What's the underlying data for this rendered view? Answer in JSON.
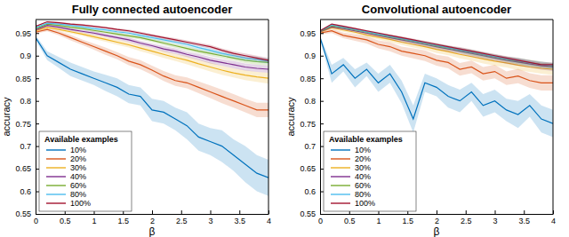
{
  "chart_data": [
    {
      "type": "line",
      "title": "Fully connected autoencoder",
      "x_label": "β",
      "y_label": "accuracy",
      "legend": "lower left",
      "legend_title": "Available examples",
      "grid": false,
      "xlim": [
        0,
        4
      ],
      "ylim": [
        0.55,
        0.98
      ],
      "xticks": [
        0,
        0.5,
        1,
        1.5,
        2,
        2.5,
        3,
        3.5,
        4
      ],
      "yticks": [
        0.55,
        0.6,
        0.65,
        0.7,
        0.75,
        0.8,
        0.85,
        0.9,
        0.95
      ],
      "x": [
        0,
        0.2,
        0.4,
        0.6,
        0.8,
        1,
        1.2,
        1.4,
        1.6,
        1.8,
        2,
        2.2,
        2.4,
        2.6,
        2.8,
        3,
        3.2,
        3.4,
        3.6,
        3.8,
        4
      ],
      "series": [
        {
          "name": "10%",
          "color": "#0072bd",
          "values": [
            0.94,
            0.9,
            0.885,
            0.87,
            0.86,
            0.85,
            0.84,
            0.83,
            0.815,
            0.81,
            0.78,
            0.775,
            0.76,
            0.745,
            0.72,
            0.71,
            0.7,
            0.68,
            0.66,
            0.64,
            0.63
          ],
          "errors": [
            0.005,
            0.01,
            0.012,
            0.015,
            0.015,
            0.015,
            0.018,
            0.02,
            0.02,
            0.02,
            0.025,
            0.025,
            0.025,
            0.03,
            0.03,
            0.03,
            0.035,
            0.035,
            0.04,
            0.04,
            0.04
          ]
        },
        {
          "name": "20%",
          "color": "#d95319",
          "values": [
            0.952,
            0.958,
            0.95,
            0.94,
            0.93,
            0.92,
            0.91,
            0.9,
            0.888,
            0.88,
            0.868,
            0.855,
            0.845,
            0.84,
            0.83,
            0.82,
            0.81,
            0.8,
            0.79,
            0.78,
            0.78
          ],
          "errors": [
            0.003,
            0.004,
            0.005,
            0.006,
            0.006,
            0.007,
            0.008,
            0.008,
            0.009,
            0.01,
            0.01,
            0.011,
            0.012,
            0.012,
            0.013,
            0.014,
            0.015,
            0.015,
            0.015,
            0.016,
            0.016
          ]
        },
        {
          "name": "30%",
          "color": "#edb120",
          "values": [
            0.955,
            0.963,
            0.958,
            0.953,
            0.948,
            0.942,
            0.936,
            0.93,
            0.924,
            0.917,
            0.91,
            0.903,
            0.896,
            0.89,
            0.882,
            0.875,
            0.868,
            0.862,
            0.857,
            0.853,
            0.85
          ],
          "errors": [
            0.002,
            0.003,
            0.003,
            0.004,
            0.004,
            0.005,
            0.005,
            0.006,
            0.006,
            0.007,
            0.007,
            0.008,
            0.008,
            0.009,
            0.009,
            0.01,
            0.01,
            0.01,
            0.011,
            0.011,
            0.012
          ]
        },
        {
          "name": "40%",
          "color": "#7e2f8e",
          "values": [
            0.957,
            0.967,
            0.963,
            0.958,
            0.954,
            0.95,
            0.945,
            0.94,
            0.935,
            0.928,
            0.922,
            0.915,
            0.91,
            0.903,
            0.897,
            0.89,
            0.885,
            0.88,
            0.875,
            0.872,
            0.87
          ],
          "errors": [
            0.002,
            0.002,
            0.003,
            0.003,
            0.003,
            0.004,
            0.004,
            0.004,
            0.005,
            0.005,
            0.005,
            0.006,
            0.006,
            0.006,
            0.007,
            0.007,
            0.007,
            0.008,
            0.008,
            0.008,
            0.008
          ]
        },
        {
          "name": "60%",
          "color": "#77ac30",
          "values": [
            0.96,
            0.97,
            0.967,
            0.963,
            0.96,
            0.956,
            0.952,
            0.948,
            0.944,
            0.94,
            0.934,
            0.928,
            0.922,
            0.916,
            0.91,
            0.905,
            0.9,
            0.895,
            0.89,
            0.887,
            0.885
          ],
          "errors": [
            0.002,
            0.002,
            0.002,
            0.003,
            0.003,
            0.003,
            0.003,
            0.004,
            0.004,
            0.004,
            0.004,
            0.005,
            0.005,
            0.005,
            0.005,
            0.006,
            0.006,
            0.006,
            0.006,
            0.007,
            0.007
          ]
        },
        {
          "name": "80%",
          "color": "#4dbeee",
          "values": [
            0.962,
            0.972,
            0.97,
            0.967,
            0.964,
            0.96,
            0.957,
            0.953,
            0.95,
            0.945,
            0.94,
            0.935,
            0.93,
            0.925,
            0.918,
            0.912,
            0.905,
            0.9,
            0.895,
            0.892,
            0.888
          ],
          "errors": [
            0.001,
            0.002,
            0.002,
            0.002,
            0.002,
            0.003,
            0.003,
            0.003,
            0.003,
            0.004,
            0.004,
            0.004,
            0.004,
            0.005,
            0.005,
            0.005,
            0.005,
            0.005,
            0.006,
            0.006,
            0.006
          ]
        },
        {
          "name": "100%",
          "color": "#a2142f",
          "values": [
            0.965,
            0.975,
            0.973,
            0.97,
            0.968,
            0.965,
            0.962,
            0.958,
            0.955,
            0.95,
            0.945,
            0.94,
            0.935,
            0.93,
            0.925,
            0.92,
            0.912,
            0.905,
            0.9,
            0.895,
            0.89
          ],
          "errors": [
            0.001,
            0.001,
            0.002,
            0.002,
            0.002,
            0.002,
            0.002,
            0.003,
            0.003,
            0.003,
            0.003,
            0.003,
            0.004,
            0.004,
            0.004,
            0.004,
            0.004,
            0.005,
            0.005,
            0.005,
            0.005
          ]
        }
      ]
    },
    {
      "type": "line",
      "title": "Convolutional autoencoder",
      "x_label": "β",
      "y_label": "accuracy",
      "legend": "lower left",
      "legend_title": "Available examples",
      "grid": false,
      "xlim": [
        0,
        4
      ],
      "ylim": [
        0.55,
        0.98
      ],
      "xticks": [
        0,
        0.5,
        1,
        1.5,
        2,
        2.5,
        3,
        3.5,
        4
      ],
      "yticks": [
        0.55,
        0.6,
        0.65,
        0.7,
        0.75,
        0.8,
        0.85,
        0.9,
        0.95
      ],
      "x": [
        0,
        0.2,
        0.4,
        0.6,
        0.8,
        1,
        1.2,
        1.4,
        1.6,
        1.8,
        2,
        2.2,
        2.4,
        2.6,
        2.8,
        3,
        3.2,
        3.4,
        3.6,
        3.8,
        4
      ],
      "series": [
        {
          "name": "10%",
          "color": "#0072bd",
          "values": [
            0.94,
            0.86,
            0.88,
            0.85,
            0.87,
            0.84,
            0.86,
            0.82,
            0.76,
            0.84,
            0.83,
            0.81,
            0.8,
            0.82,
            0.79,
            0.8,
            0.78,
            0.77,
            0.79,
            0.76,
            0.75
          ],
          "errors": [
            0.005,
            0.02,
            0.015,
            0.02,
            0.015,
            0.02,
            0.02,
            0.025,
            0.03,
            0.02,
            0.02,
            0.025,
            0.025,
            0.02,
            0.025,
            0.025,
            0.025,
            0.03,
            0.025,
            0.03,
            0.03
          ]
        },
        {
          "name": "20%",
          "color": "#d95319",
          "values": [
            0.95,
            0.955,
            0.945,
            0.94,
            0.935,
            0.925,
            0.92,
            0.91,
            0.905,
            0.9,
            0.89,
            0.885,
            0.87,
            0.875,
            0.86,
            0.865,
            0.85,
            0.855,
            0.845,
            0.84,
            0.84
          ],
          "errors": [
            0.003,
            0.005,
            0.006,
            0.007,
            0.008,
            0.009,
            0.01,
            0.01,
            0.011,
            0.012,
            0.012,
            0.013,
            0.014,
            0.014,
            0.015,
            0.015,
            0.015,
            0.016,
            0.016,
            0.017,
            0.017
          ]
        },
        {
          "name": "30%",
          "color": "#edb120",
          "values": [
            0.952,
            0.962,
            0.957,
            0.952,
            0.946,
            0.941,
            0.936,
            0.93,
            0.925,
            0.92,
            0.914,
            0.909,
            0.903,
            0.898,
            0.893,
            0.888,
            0.884,
            0.879,
            0.875,
            0.872,
            0.87
          ],
          "errors": [
            0.002,
            0.003,
            0.004,
            0.004,
            0.005,
            0.005,
            0.006,
            0.006,
            0.007,
            0.007,
            0.008,
            0.008,
            0.009,
            0.009,
            0.01,
            0.01,
            0.01,
            0.011,
            0.011,
            0.012,
            0.012
          ]
        },
        {
          "name": "40%",
          "color": "#7e2f8e",
          "values": [
            0.953,
            0.964,
            0.96,
            0.955,
            0.95,
            0.945,
            0.94,
            0.935,
            0.93,
            0.925,
            0.92,
            0.915,
            0.91,
            0.905,
            0.9,
            0.895,
            0.89,
            0.886,
            0.882,
            0.878,
            0.875
          ],
          "errors": [
            0.002,
            0.003,
            0.003,
            0.003,
            0.004,
            0.004,
            0.004,
            0.005,
            0.005,
            0.005,
            0.006,
            0.006,
            0.006,
            0.007,
            0.007,
            0.007,
            0.008,
            0.008,
            0.008,
            0.009,
            0.009
          ]
        },
        {
          "name": "60%",
          "color": "#77ac30",
          "values": [
            0.954,
            0.966,
            0.962,
            0.957,
            0.952,
            0.947,
            0.942,
            0.937,
            0.932,
            0.927,
            0.922,
            0.917,
            0.912,
            0.907,
            0.902,
            0.897,
            0.892,
            0.888,
            0.884,
            0.88,
            0.877
          ],
          "errors": [
            0.002,
            0.002,
            0.003,
            0.003,
            0.003,
            0.003,
            0.004,
            0.004,
            0.004,
            0.005,
            0.005,
            0.005,
            0.005,
            0.006,
            0.006,
            0.006,
            0.006,
            0.007,
            0.007,
            0.007,
            0.007
          ]
        },
        {
          "name": "80%",
          "color": "#4dbeee",
          "values": [
            0.955,
            0.968,
            0.963,
            0.958,
            0.953,
            0.948,
            0.943,
            0.938,
            0.933,
            0.928,
            0.923,
            0.918,
            0.913,
            0.908,
            0.903,
            0.898,
            0.893,
            0.889,
            0.884,
            0.88,
            0.878
          ],
          "errors": [
            0.001,
            0.002,
            0.002,
            0.002,
            0.003,
            0.003,
            0.003,
            0.003,
            0.004,
            0.004,
            0.004,
            0.004,
            0.005,
            0.005,
            0.005,
            0.005,
            0.005,
            0.006,
            0.006,
            0.006,
            0.006
          ]
        },
        {
          "name": "100%",
          "color": "#a2142f",
          "values": [
            0.955,
            0.97,
            0.965,
            0.96,
            0.955,
            0.95,
            0.945,
            0.94,
            0.935,
            0.93,
            0.925,
            0.92,
            0.915,
            0.91,
            0.905,
            0.9,
            0.895,
            0.89,
            0.885,
            0.88,
            0.88
          ],
          "errors": [
            0.001,
            0.001,
            0.002,
            0.002,
            0.002,
            0.002,
            0.002,
            0.003,
            0.003,
            0.003,
            0.003,
            0.003,
            0.004,
            0.004,
            0.004,
            0.004,
            0.004,
            0.005,
            0.005,
            0.005,
            0.005
          ]
        }
      ]
    }
  ]
}
